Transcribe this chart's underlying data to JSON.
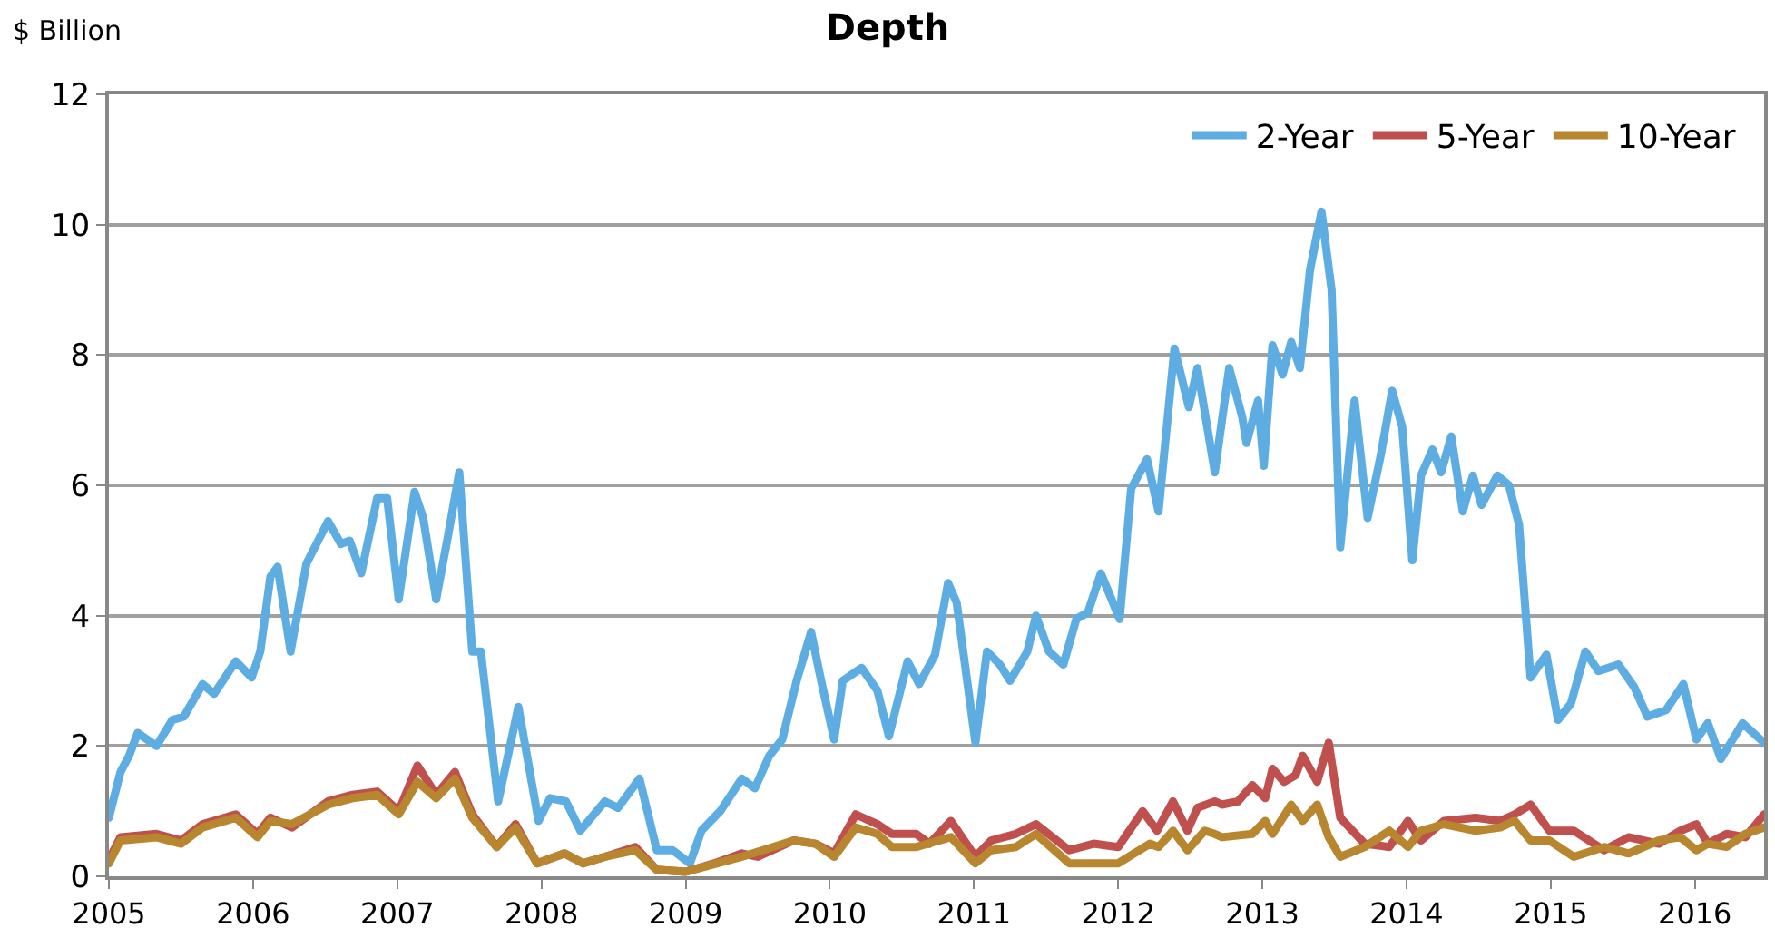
{
  "chart_data": {
    "type": "line",
    "title": "Depth",
    "ylabel": "$ Billion",
    "xlim": [
      2005,
      2016.48
    ],
    "xticks": [
      2005,
      2006,
      2007,
      2008,
      2009,
      2010,
      2011,
      2012,
      2013,
      2014,
      2015,
      2016
    ],
    "ylim": [
      0,
      12
    ],
    "yticks": [
      0,
      2,
      4,
      6,
      8,
      10,
      12
    ],
    "grid": "y",
    "legend": "top right",
    "marker": "none",
    "line_style": "solid",
    "series": [
      {
        "name": "2-Year",
        "color": "#5dade2",
        "x": [
          2005.0,
          2005.08,
          2005.14,
          2005.2,
          2005.33,
          2005.44,
          2005.52,
          2005.65,
          2005.73,
          2005.88,
          2005.99,
          2006.05,
          2006.12,
          2006.17,
          2006.26,
          2006.37,
          2006.52,
          2006.61,
          2006.67,
          2006.75,
          2006.86,
          2006.93,
          2007.01,
          2007.12,
          2007.18,
          2007.27,
          2007.35,
          2007.43,
          2007.52,
          2007.58,
          2007.7,
          2007.84,
          2007.98,
          2008.06,
          2008.17,
          2008.27,
          2008.44,
          2008.53,
          2008.68,
          2008.8,
          2008.91,
          2009.03,
          2009.11,
          2009.24,
          2009.39,
          2009.48,
          2009.58,
          2009.67,
          2009.77,
          2009.87,
          2009.94,
          2010.03,
          2010.09,
          2010.22,
          2010.33,
          2010.41,
          2010.54,
          2010.62,
          2010.73,
          2010.82,
          2010.88,
          2011.01,
          2011.09,
          2011.18,
          2011.25,
          2011.37,
          2011.43,
          2011.52,
          2011.62,
          2011.71,
          2011.79,
          2011.88,
          2012.01,
          2012.09,
          2012.2,
          2012.28,
          2012.39,
          2012.49,
          2012.55,
          2012.67,
          2012.77,
          2012.86,
          2012.89,
          2012.97,
          2013.01,
          2013.07,
          2013.14,
          2013.2,
          2013.26,
          2013.33,
          2013.41,
          2013.48,
          2013.54,
          2013.64,
          2013.73,
          2013.82,
          2013.9,
          2013.97,
          2014.04,
          2014.1,
          2014.18,
          2014.24,
          2014.31,
          2014.39,
          2014.46,
          2014.52,
          2014.63,
          2014.71,
          2014.78,
          2014.86,
          2014.97,
          2015.05,
          2015.14,
          2015.24,
          2015.33,
          2015.47,
          2015.58,
          2015.67,
          2015.8,
          2015.92,
          2016.01,
          2016.09,
          2016.18,
          2016.33,
          2016.48
        ],
        "values": [
          0.9,
          1.6,
          1.85,
          2.2,
          2.0,
          2.4,
          2.45,
          2.95,
          2.8,
          3.3,
          3.05,
          3.45,
          4.6,
          4.75,
          3.45,
          4.8,
          5.45,
          5.1,
          5.15,
          4.65,
          5.8,
          5.8,
          4.25,
          5.9,
          5.5,
          4.25,
          5.2,
          6.2,
          3.45,
          3.45,
          1.15,
          2.6,
          0.85,
          1.2,
          1.15,
          0.7,
          1.15,
          1.05,
          1.5,
          0.4,
          0.4,
          0.2,
          0.7,
          1.0,
          1.5,
          1.35,
          1.85,
          2.1,
          3.0,
          3.75,
          3.0,
          2.1,
          3.0,
          3.2,
          2.85,
          2.15,
          3.3,
          2.95,
          3.4,
          4.5,
          4.2,
          2.05,
          3.45,
          3.25,
          3.0,
          3.45,
          4.0,
          3.45,
          3.25,
          3.95,
          4.05,
          4.65,
          3.95,
          5.95,
          6.4,
          5.6,
          8.1,
          7.2,
          7.8,
          6.2,
          7.8,
          7.05,
          6.65,
          7.3,
          6.3,
          8.15,
          7.7,
          8.2,
          7.8,
          9.3,
          10.2,
          9.0,
          5.05,
          7.3,
          5.5,
          6.45,
          7.45,
          6.9,
          4.85,
          6.15,
          6.55,
          6.2,
          6.75,
          5.6,
          6.15,
          5.7,
          6.15,
          6.0,
          5.4,
          3.05,
          3.4,
          2.4,
          2.65,
          3.45,
          3.15,
          3.25,
          2.9,
          2.45,
          2.55,
          2.95,
          2.1,
          2.35,
          1.8,
          2.35,
          2.05
        ]
      },
      {
        "name": "5-Year",
        "color": "#c0504d",
        "x": [
          2005.0,
          2005.08,
          2005.33,
          2005.5,
          2005.65,
          2005.88,
          2006.03,
          2006.12,
          2006.27,
          2006.52,
          2006.69,
          2006.86,
          2007.01,
          2007.14,
          2007.27,
          2007.4,
          2007.52,
          2007.69,
          2007.82,
          2007.97,
          2008.16,
          2008.29,
          2008.44,
          2008.65,
          2008.8,
          2009.0,
          2009.2,
          2009.39,
          2009.5,
          2009.75,
          2009.9,
          2010.03,
          2010.18,
          2010.33,
          2010.43,
          2010.6,
          2010.69,
          2010.84,
          2011.01,
          2011.12,
          2011.29,
          2011.43,
          2011.66,
          2011.83,
          2012.0,
          2012.17,
          2012.27,
          2012.38,
          2012.48,
          2012.55,
          2012.67,
          2012.72,
          2012.83,
          2012.93,
          2013.02,
          2013.07,
          2013.15,
          2013.23,
          2013.28,
          2013.38,
          2013.46,
          2013.54,
          2013.71,
          2013.88,
          2014.01,
          2014.1,
          2014.26,
          2014.48,
          2014.65,
          2014.75,
          2014.86,
          2014.99,
          2015.16,
          2015.37,
          2015.54,
          2015.75,
          2015.9,
          2016.01,
          2016.09,
          2016.22,
          2016.35,
          2016.48
        ],
        "values": [
          0.25,
          0.6,
          0.65,
          0.55,
          0.8,
          0.95,
          0.65,
          0.9,
          0.75,
          1.15,
          1.25,
          1.3,
          1.0,
          1.7,
          1.25,
          1.6,
          0.95,
          0.45,
          0.8,
          0.2,
          0.35,
          0.2,
          0.3,
          0.45,
          0.1,
          0.07,
          0.2,
          0.35,
          0.3,
          0.55,
          0.5,
          0.35,
          0.95,
          0.8,
          0.65,
          0.65,
          0.5,
          0.85,
          0.3,
          0.55,
          0.65,
          0.8,
          0.4,
          0.5,
          0.45,
          1.0,
          0.7,
          1.15,
          0.7,
          1.05,
          1.15,
          1.1,
          1.15,
          1.4,
          1.2,
          1.65,
          1.45,
          1.55,
          1.85,
          1.45,
          2.05,
          0.9,
          0.5,
          0.45,
          0.85,
          0.55,
          0.85,
          0.9,
          0.85,
          0.95,
          1.1,
          0.7,
          0.7,
          0.4,
          0.6,
          0.5,
          0.7,
          0.8,
          0.5,
          0.65,
          0.6,
          0.95
        ]
      },
      {
        "name": "10-Year",
        "color": "#b8862f",
        "x": [
          2005.0,
          2005.08,
          2005.33,
          2005.5,
          2005.65,
          2005.88,
          2006.03,
          2006.12,
          2006.27,
          2006.52,
          2006.69,
          2006.86,
          2007.01,
          2007.14,
          2007.27,
          2007.4,
          2007.52,
          2007.69,
          2007.82,
          2007.97,
          2008.16,
          2008.29,
          2008.44,
          2008.65,
          2008.8,
          2009.0,
          2009.39,
          2009.75,
          2009.9,
          2010.03,
          2010.18,
          2010.33,
          2010.43,
          2010.6,
          2010.84,
          2011.01,
          2011.12,
          2011.29,
          2011.43,
          2011.66,
          2012.0,
          2012.22,
          2012.28,
          2012.38,
          2012.48,
          2012.6,
          2012.67,
          2012.72,
          2012.93,
          2013.02,
          2013.07,
          2013.2,
          2013.28,
          2013.38,
          2013.46,
          2013.54,
          2013.71,
          2013.88,
          2014.01,
          2014.1,
          2014.26,
          2014.48,
          2014.65,
          2014.75,
          2014.86,
          2014.99,
          2015.16,
          2015.37,
          2015.54,
          2015.75,
          2015.9,
          2016.01,
          2016.09,
          2016.22,
          2016.35,
          2016.48
        ],
        "values": [
          0.2,
          0.55,
          0.6,
          0.5,
          0.75,
          0.9,
          0.6,
          0.85,
          0.8,
          1.1,
          1.2,
          1.25,
          0.95,
          1.45,
          1.2,
          1.5,
          0.9,
          0.45,
          0.75,
          0.2,
          0.35,
          0.2,
          0.3,
          0.4,
          0.1,
          0.07,
          0.3,
          0.55,
          0.5,
          0.3,
          0.75,
          0.65,
          0.45,
          0.45,
          0.6,
          0.2,
          0.4,
          0.45,
          0.65,
          0.2,
          0.2,
          0.5,
          0.45,
          0.7,
          0.4,
          0.7,
          0.65,
          0.6,
          0.65,
          0.85,
          0.65,
          1.1,
          0.85,
          1.1,
          0.6,
          0.3,
          0.45,
          0.7,
          0.45,
          0.7,
          0.8,
          0.7,
          0.75,
          0.85,
          0.55,
          0.55,
          0.3,
          0.45,
          0.35,
          0.55,
          0.6,
          0.4,
          0.5,
          0.45,
          0.65,
          0.75
        ]
      }
    ]
  }
}
